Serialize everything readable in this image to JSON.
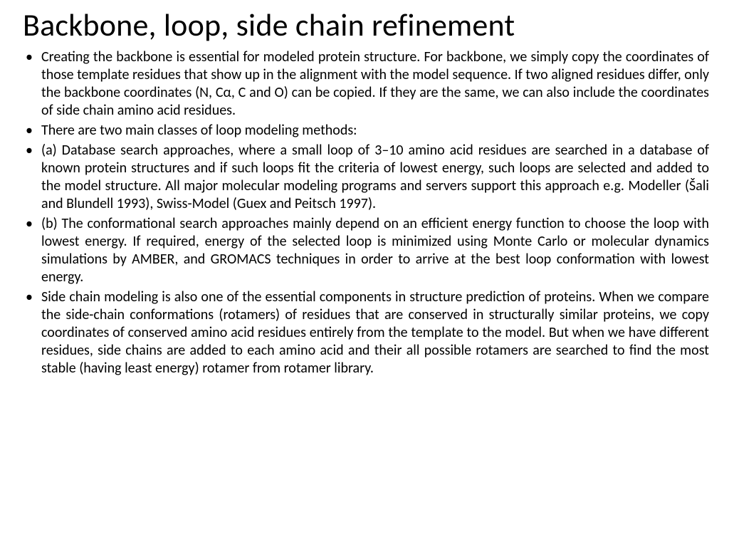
{
  "slide": {
    "title": "Backbone, loop, side chain refinement",
    "bullets": [
      "Creating the backbone is essential for modeled protein structure. For backbone, we simply copy the coordinates of those template residues that show up in the alignment with the model sequence. If two aligned residues differ, only the backbone coordinates (N, Cα, C and O) can be copied. If they are the same, we can also include the coordinates of side chain amino acid residues.",
      "There are two main classes of loop modeling methods:",
      "(a) Database search approaches, where a small loop of 3–10 amino acid residues are searched in a database of known protein structures and if such loops fit the criteria of lowest energy, such loops are selected and added to the model structure. All major molecular modeling programs and servers support this approach e.g. Modeller (Šali and Blundell 1993), Swiss-Model (Guex and Peitsch 1997).",
      "(b) The conformational search approaches mainly depend on an efficient energy function to choose the loop with lowest energy. If required, energy of the selected loop is minimized using Monte Carlo or molecular dynamics simulations by AMBER, and GROMACS techniques in order to arrive at the best loop conformation with lowest energy.",
      "Side chain modeling is also one of the essential components in structure prediction of proteins. When we compare the side-chain conformations (rotamers) of residues that are conserved in structurally similar proteins, we copy coordinates of conserved amino acid residues entirely from the template to the model. But when we have different residues, side chains are added to each amino acid and their all possible rotamers are searched to find the most stable (having least energy) rotamer from rotamer library."
    ]
  },
  "style": {
    "background_color": "#ffffff",
    "text_color": "#000000",
    "title_fontsize": 44,
    "body_fontsize": 20,
    "font_family": "Calibri"
  }
}
